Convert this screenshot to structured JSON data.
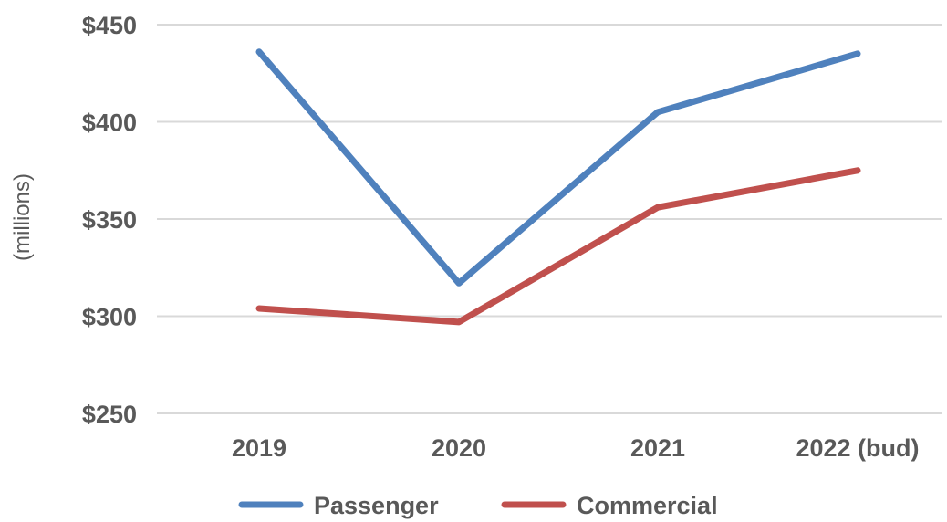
{
  "chart_data": {
    "type": "line",
    "title": "",
    "xlabel": "",
    "ylabel": "(millions)",
    "categories": [
      "2019",
      "2020",
      "2021",
      "2022 (bud)"
    ],
    "ylim": [
      250,
      450
    ],
    "yticks": [
      250,
      300,
      350,
      400,
      450
    ],
    "ytick_labels": [
      "$250",
      "$300",
      "$350",
      "$400",
      "$450"
    ],
    "grid": "horizontal",
    "legend_position": "bottom",
    "series": [
      {
        "name": "Passenger",
        "color": "#4f81bd",
        "values": [
          436,
          317,
          405,
          435
        ]
      },
      {
        "name": "Commercial",
        "color": "#c0504d",
        "values": [
          304,
          297,
          356,
          375
        ]
      }
    ]
  }
}
